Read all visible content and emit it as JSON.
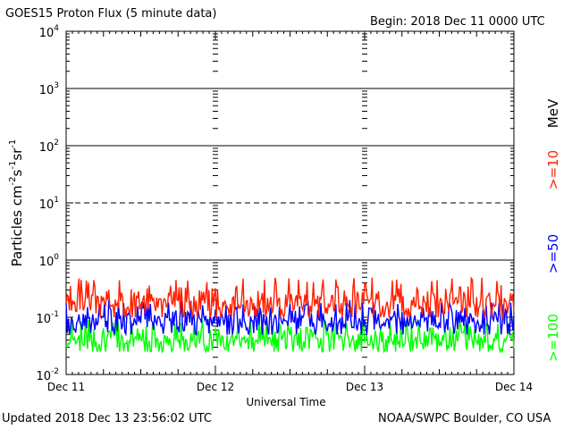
{
  "header": {
    "title": "GOES15 Proton Flux (5 minute data)",
    "begin": "Begin: 2018 Dec 11 0000 UTC"
  },
  "footer": {
    "updated": "Updated 2018 Dec 13 23:56:02 UTC",
    "credit": "NOAA/SWPC Boulder, CO USA"
  },
  "chart_data": {
    "type": "line",
    "title": "GOES15 Proton Flux (5 minute data)",
    "xlabel": "Universal Time",
    "ylabel_parts": [
      "Particles cm",
      "-2",
      "s",
      "-1",
      "sr",
      "-1"
    ],
    "y_scale": "log",
    "ylim": [
      0.01,
      10000
    ],
    "y_ticks": [
      {
        "base": "10",
        "exp": "-2",
        "value": 0.01
      },
      {
        "base": "10",
        "exp": "-1",
        "value": 0.1
      },
      {
        "base": "10",
        "exp": "0",
        "value": 1
      },
      {
        "base": "10",
        "exp": "1",
        "value": 10
      },
      {
        "base": "10",
        "exp": "2",
        "value": 100
      },
      {
        "base": "10",
        "exp": "3",
        "value": 1000
      },
      {
        "base": "10",
        "exp": "4",
        "value": 10000
      }
    ],
    "xlim": [
      "Dec 11",
      "Dec 14"
    ],
    "x_tick_labels": [
      "Dec 11",
      "Dec 12",
      "Dec 13",
      "Dec 14"
    ],
    "unit_label": "MeV",
    "threshold_lines": [
      {
        "value": 1000,
        "style": "solid"
      },
      {
        "value": 100,
        "style": "solid"
      },
      {
        "value": 10,
        "style": "dashed"
      },
      {
        "value": 1,
        "style": "solid"
      }
    ],
    "series": [
      {
        "name": ">=10",
        "color": "#ff2000",
        "typical": 0.18,
        "range": [
          0.1,
          0.5
        ]
      },
      {
        "name": ">=50",
        "color": "#0000ff",
        "typical": 0.085,
        "range": [
          0.05,
          0.2
        ]
      },
      {
        "name": ">=100",
        "color": "#00ff00",
        "typical": 0.04,
        "range": [
          0.025,
          0.09
        ]
      }
    ]
  }
}
